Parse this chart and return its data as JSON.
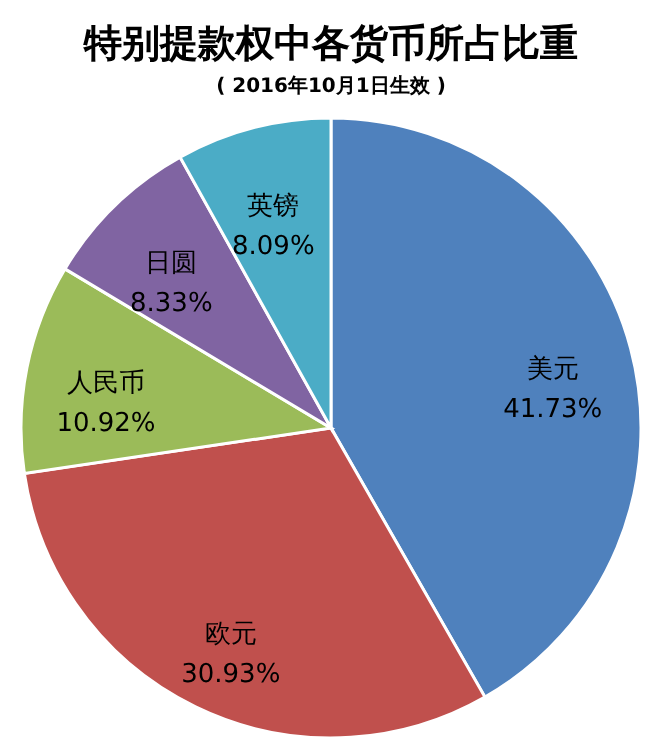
{
  "chart_data": {
    "type": "pie",
    "title": "特别提款权中各货币所占比重",
    "subtitle": "( 2016年10月1日生效 )",
    "categories": [
      "美元",
      "欧元",
      "人民币",
      "日圆",
      "英镑"
    ],
    "values": [
      41.73,
      30.93,
      10.92,
      8.33,
      8.09
    ],
    "value_labels": [
      "41.73%",
      "30.93%",
      "10.92%",
      "8.33%",
      "8.09%"
    ],
    "colors": [
      "#4f81bd",
      "#c0504d",
      "#9bbb59",
      "#8064a2",
      "#4bacc6"
    ],
    "legend": false
  }
}
